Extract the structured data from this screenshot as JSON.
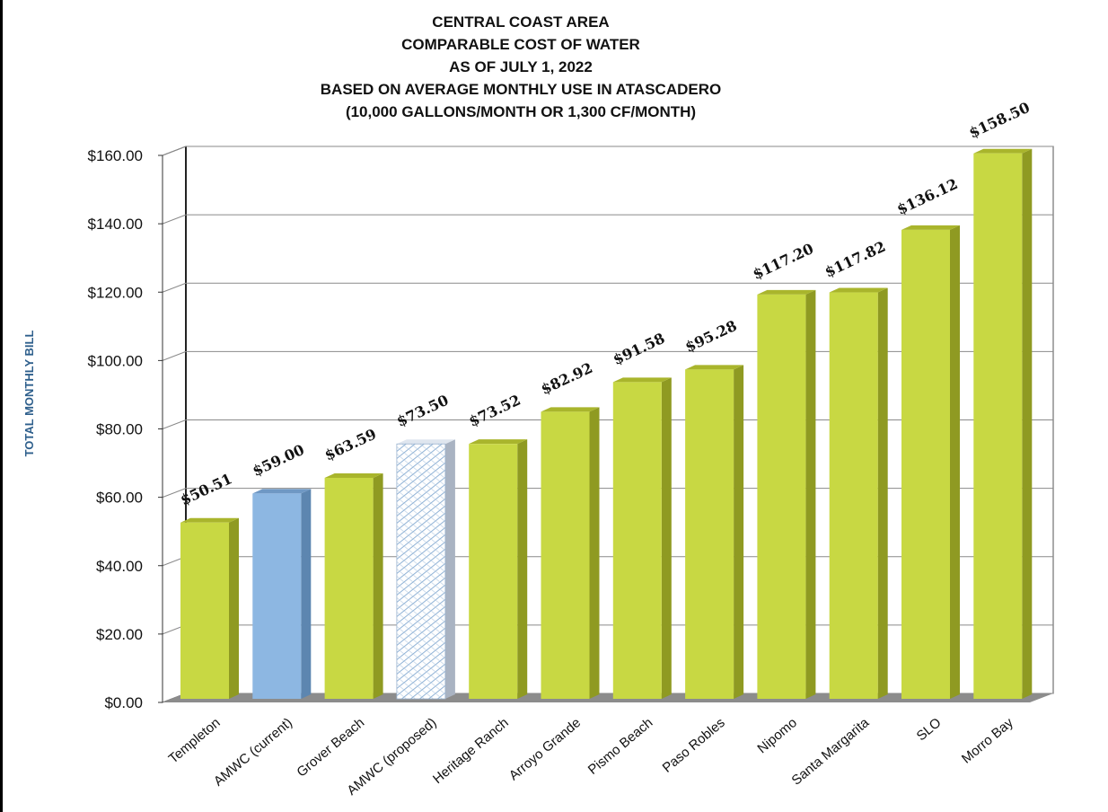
{
  "chart_data": {
    "type": "bar",
    "title_lines": [
      "CENTRAL COAST AREA",
      "COMPARABLE COST OF WATER",
      "AS OF JULY 1, 2022",
      "BASED ON AVERAGE MONTHLY USE IN ATASCADERO",
      "(10,000 GALLONS/MONTH OR 1,300 CF/MONTH)"
    ],
    "ylabel": "TOTAL MONTHLY BILL",
    "xlabel": "",
    "ylim": [
      0,
      160
    ],
    "yticks": [
      "$0.00",
      "$20.00",
      "$40.00",
      "$60.00",
      "$80.00",
      "$100.00",
      "$120.00",
      "$140.00",
      "$160.00"
    ],
    "grid": true,
    "categories": [
      "Templeton",
      "AMWC (current)",
      "Grover Beach",
      "AMWC (proposed)",
      "Heritage Ranch",
      "Arroyo Grande",
      "Pismo Beach",
      "Paso Robles",
      "Nipomo",
      "Santa Margarita",
      "SLO",
      "Morro Bay"
    ],
    "values": [
      50.51,
      59.0,
      63.59,
      73.5,
      73.52,
      82.92,
      91.58,
      95.28,
      117.2,
      117.82,
      136.12,
      158.5
    ],
    "data_labels": [
      "$50.51",
      "$59.00",
      "$63.59",
      "$73.50",
      "$73.52",
      "$82.92",
      "$91.58",
      "$95.28",
      "$117.20",
      "$117.82",
      "$136.12",
      "$158.50"
    ],
    "bar_styles": [
      "green",
      "blue",
      "green",
      "hatched",
      "green",
      "green",
      "green",
      "green",
      "green",
      "green",
      "green",
      "green"
    ],
    "colors": {
      "green_front": "#c8d843",
      "green_side": "#8f9a22",
      "green_top": "#a9b52c",
      "blue_front": "#8db7e2",
      "blue_side": "#5d86b0",
      "blue_top": "#6f98c4",
      "hatch_line": "#8fb2d6",
      "hatch_side": "#a9b3c2",
      "floor": "#8c8c8c",
      "grid": "#8a8a8a",
      "ylabel": "#2e5f8c"
    }
  }
}
